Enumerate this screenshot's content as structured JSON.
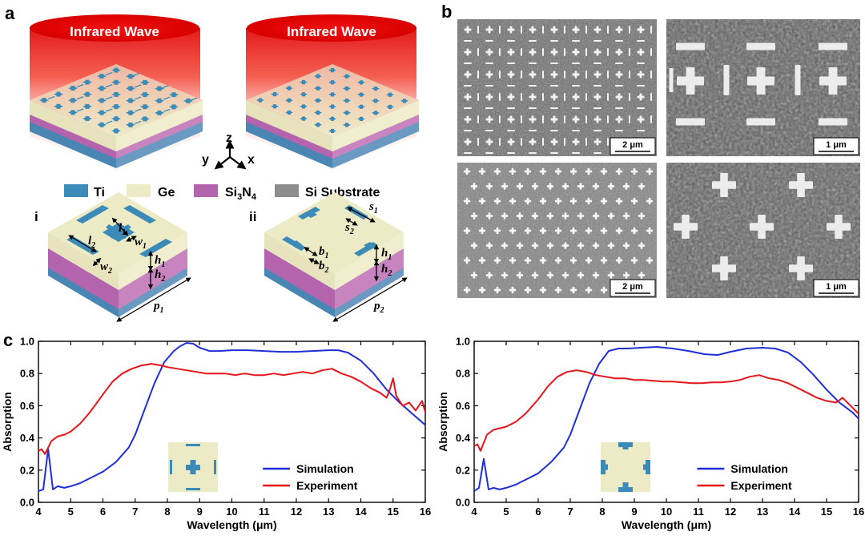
{
  "panels": {
    "a": "a",
    "b": "b",
    "c": "c"
  },
  "panel_a": {
    "wave_left": "Infrared Wave",
    "wave_right": "Infrared Wave",
    "axes": {
      "z": "z",
      "y": "y",
      "x": "x"
    },
    "legend": [
      {
        "label": "Ti",
        "color": "#3b8ab8"
      },
      {
        "label": "Ge",
        "color": "#ecebc6"
      },
      {
        "label_main": "Si",
        "label_sub": "3",
        "label_main2": "N",
        "label_sub2": "4",
        "color": "#b463ad"
      },
      {
        "label": "Si Substrate",
        "color": "#8d8d8d"
      }
    ],
    "sub_i": "i",
    "sub_ii": "ii",
    "dims_i": {
      "l1": {
        "main": "l",
        "sub": "1"
      },
      "w1": {
        "main": "w",
        "sub": "1"
      },
      "l2": {
        "main": "l",
        "sub": "2"
      },
      "w2": {
        "main": "w",
        "sub": "2"
      },
      "h1": {
        "main": "h",
        "sub": "1"
      },
      "h2": {
        "main": "h",
        "sub": "2"
      },
      "p1": {
        "main": "p",
        "sub": "1"
      }
    },
    "dims_ii": {
      "s1": {
        "main": "s",
        "sub": "1"
      },
      "s2": {
        "main": "s",
        "sub": "2"
      },
      "b1": {
        "main": "b",
        "sub": "1"
      },
      "b2": {
        "main": "b",
        "sub": "2"
      },
      "h1": {
        "main": "h",
        "sub": "1"
      },
      "h2": {
        "main": "h",
        "sub": "2"
      },
      "p2": {
        "main": "p",
        "sub": "2"
      }
    }
  },
  "panel_b": {
    "scales": [
      "2 μm",
      "1 μm",
      "2 μm",
      "1 μm"
    ]
  },
  "chart_data": [
    {
      "type": "line",
      "xlabel": "Wavelength (μm)",
      "ylabel": "Absorption",
      "xlim": [
        4,
        16
      ],
      "ylim": [
        0.0,
        1.0
      ],
      "xticks": [
        4,
        5,
        6,
        7,
        8,
        9,
        10,
        11,
        12,
        13,
        14,
        15,
        16
      ],
      "yticks": [
        0.0,
        0.2,
        0.4,
        0.6,
        0.8,
        1.0
      ],
      "legend_position": "bottom-right",
      "series": [
        {
          "name": "Simulation",
          "color": "#1f2fd6",
          "x": [
            4.0,
            4.15,
            4.3,
            4.45,
            4.6,
            4.8,
            5.0,
            5.3,
            5.6,
            6.0,
            6.4,
            6.8,
            7.0,
            7.3,
            7.6,
            7.9,
            8.2,
            8.4,
            8.6,
            8.8,
            9.0,
            9.3,
            9.6,
            10.0,
            10.5,
            11.0,
            11.5,
            12.0,
            12.5,
            13.0,
            13.3,
            13.6,
            14.0,
            14.4,
            14.8,
            15.2,
            15.6,
            16.0
          ],
          "y": [
            0.07,
            0.08,
            0.33,
            0.08,
            0.1,
            0.09,
            0.1,
            0.12,
            0.15,
            0.19,
            0.25,
            0.34,
            0.42,
            0.58,
            0.74,
            0.87,
            0.94,
            0.97,
            0.99,
            0.985,
            0.96,
            0.94,
            0.94,
            0.945,
            0.945,
            0.94,
            0.935,
            0.935,
            0.94,
            0.945,
            0.945,
            0.93,
            0.88,
            0.8,
            0.7,
            0.62,
            0.55,
            0.48
          ]
        },
        {
          "name": "Experiment",
          "color": "#e8141a",
          "x": [
            4.0,
            4.1,
            4.2,
            4.3,
            4.4,
            4.6,
            4.8,
            5.0,
            5.3,
            5.6,
            6.0,
            6.3,
            6.6,
            6.9,
            7.2,
            7.5,
            7.8,
            8.0,
            8.3,
            8.6,
            8.9,
            9.2,
            9.5,
            9.8,
            10.1,
            10.4,
            10.7,
            11.0,
            11.3,
            11.6,
            11.9,
            12.2,
            12.5,
            12.8,
            13.1,
            13.4,
            13.7,
            14.0,
            14.3,
            14.6,
            14.8,
            14.9,
            15.0,
            15.1,
            15.3,
            15.5,
            15.7,
            15.9,
            16.0
          ],
          "y": [
            0.32,
            0.33,
            0.3,
            0.34,
            0.38,
            0.41,
            0.42,
            0.44,
            0.49,
            0.56,
            0.67,
            0.75,
            0.8,
            0.83,
            0.85,
            0.86,
            0.85,
            0.84,
            0.83,
            0.82,
            0.81,
            0.8,
            0.8,
            0.8,
            0.79,
            0.8,
            0.79,
            0.79,
            0.8,
            0.79,
            0.8,
            0.81,
            0.8,
            0.82,
            0.83,
            0.8,
            0.78,
            0.75,
            0.71,
            0.68,
            0.65,
            0.7,
            0.77,
            0.66,
            0.6,
            0.62,
            0.57,
            0.63,
            0.56
          ]
        }
      ]
    },
    {
      "type": "line",
      "xlabel": "Wavelength (μm)",
      "ylabel": "Absorption",
      "xlim": [
        4,
        16
      ],
      "ylim": [
        0.0,
        1.0
      ],
      "xticks": [
        4,
        5,
        6,
        7,
        8,
        9,
        10,
        11,
        12,
        13,
        14,
        15,
        16
      ],
      "yticks": [
        0.0,
        0.2,
        0.4,
        0.6,
        0.8,
        1.0
      ],
      "legend_position": "bottom-right",
      "series": [
        {
          "name": "Simulation",
          "color": "#1f2fd6",
          "x": [
            4.0,
            4.15,
            4.3,
            4.45,
            4.6,
            4.8,
            5.0,
            5.3,
            5.6,
            6.0,
            6.4,
            6.8,
            7.0,
            7.3,
            7.6,
            7.9,
            8.2,
            8.5,
            8.8,
            9.2,
            9.7,
            10.2,
            10.7,
            11.2,
            11.6,
            12.0,
            12.5,
            13.0,
            13.4,
            13.8,
            14.2,
            14.6,
            15.0,
            15.4,
            15.8,
            16.0
          ],
          "y": [
            0.07,
            0.09,
            0.27,
            0.08,
            0.09,
            0.08,
            0.09,
            0.11,
            0.14,
            0.18,
            0.25,
            0.34,
            0.42,
            0.58,
            0.74,
            0.86,
            0.94,
            0.955,
            0.955,
            0.96,
            0.965,
            0.955,
            0.94,
            0.92,
            0.915,
            0.935,
            0.955,
            0.96,
            0.955,
            0.93,
            0.87,
            0.79,
            0.7,
            0.62,
            0.56,
            0.52
          ]
        },
        {
          "name": "Experiment",
          "color": "#e8141a",
          "x": [
            4.0,
            4.1,
            4.2,
            4.3,
            4.4,
            4.6,
            4.8,
            5.0,
            5.3,
            5.6,
            6.0,
            6.3,
            6.6,
            6.9,
            7.2,
            7.5,
            7.8,
            8.1,
            8.4,
            8.7,
            9.0,
            9.3,
            9.6,
            9.9,
            10.2,
            10.5,
            10.8,
            11.1,
            11.4,
            11.7,
            12.0,
            12.3,
            12.6,
            12.9,
            13.2,
            13.5,
            13.8,
            14.1,
            14.4,
            14.7,
            15.0,
            15.3,
            15.5,
            15.7,
            15.9,
            16.0
          ],
          "y": [
            0.35,
            0.36,
            0.32,
            0.37,
            0.42,
            0.45,
            0.46,
            0.47,
            0.5,
            0.55,
            0.64,
            0.72,
            0.78,
            0.81,
            0.82,
            0.81,
            0.79,
            0.78,
            0.77,
            0.77,
            0.76,
            0.76,
            0.755,
            0.75,
            0.75,
            0.745,
            0.74,
            0.74,
            0.745,
            0.745,
            0.75,
            0.76,
            0.78,
            0.79,
            0.77,
            0.76,
            0.74,
            0.71,
            0.68,
            0.65,
            0.63,
            0.62,
            0.65,
            0.61,
            0.57,
            0.55
          ]
        }
      ]
    }
  ]
}
